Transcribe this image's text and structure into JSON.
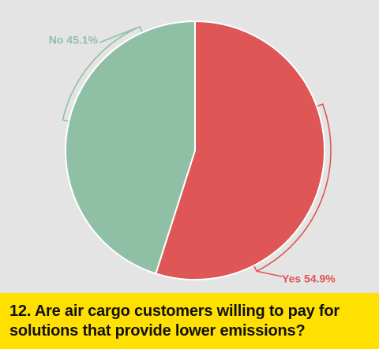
{
  "chart_data": {
    "type": "pie",
    "slices": [
      {
        "label": "Yes",
        "value": 54.9,
        "display": "Yes 54.9%",
        "color": "#de5656",
        "label_color": "#de5656"
      },
      {
        "label": "No",
        "value": 45.1,
        "display": "No 45.1%",
        "color": "#8fc0a6",
        "label_color": "#8fc0a6"
      }
    ],
    "title": "12. Are air cargo customers willing to pay for solutions that provide lower emissions?",
    "title_lines": [
      "12. Are air cargo customers willing to pay for",
      "solutions that provide lower emissions?"
    ],
    "legend": "none"
  },
  "colors": {
    "background": "#e4e4e4",
    "caption_background": "#ffe000",
    "caption_text": "#111111",
    "slice_border": "#ffffff"
  }
}
